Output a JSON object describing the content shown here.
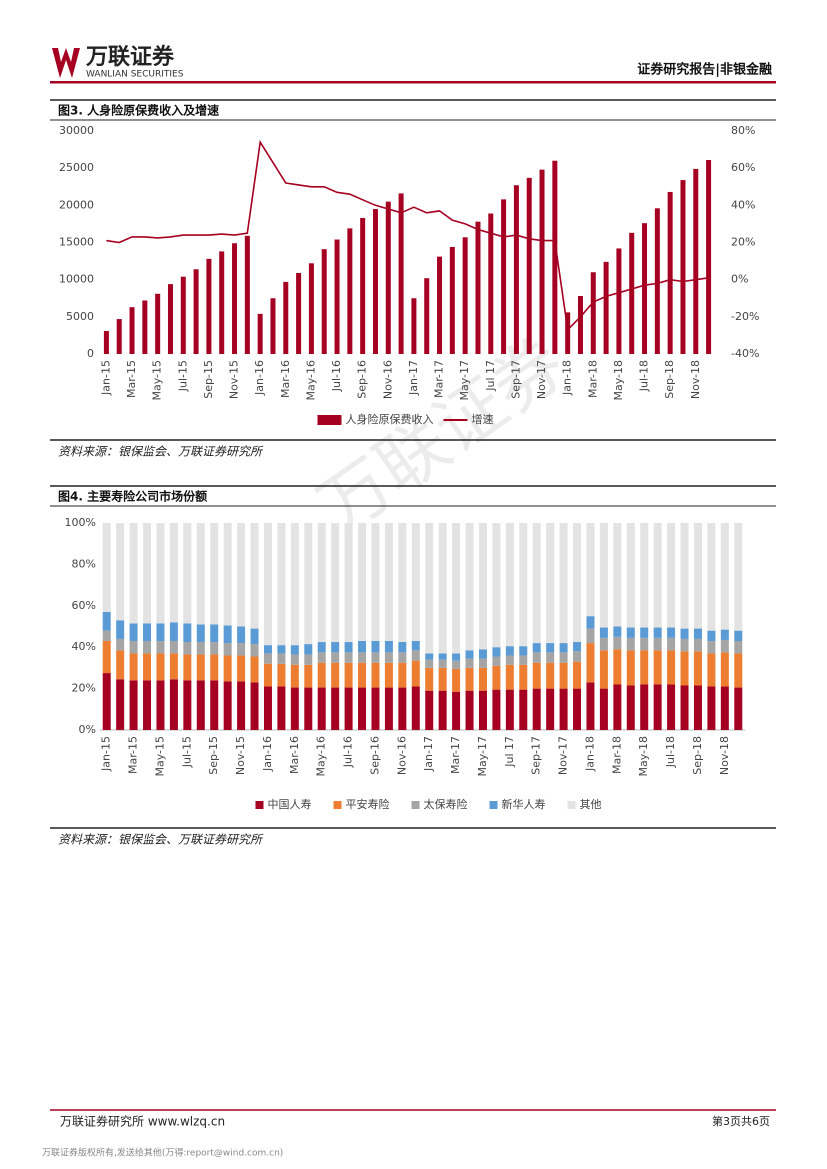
{
  "header": {
    "logo": "万联证券",
    "logo_en": "WANLIAN SECURITIES",
    "report_type": "证券研究报告|非银金融"
  },
  "watermark": "万联证券",
  "chart_data": [
    {
      "type": "bar-line",
      "title": "图3. 人身险原保费收入及增速",
      "source": "资料来源：银保监会、万联证券研究所",
      "categories": [
        "Jan-15",
        null,
        "Mar-15",
        null,
        "May-15",
        null,
        "Jul-15",
        null,
        "Sep-15",
        null,
        "Nov-15",
        null,
        "Jan-16",
        null,
        "Mar-16",
        null,
        "May-16",
        null,
        "Jul-16",
        null,
        "Sep-16",
        null,
        "Nov-16",
        null,
        "Jan-17",
        null,
        "Mar-17",
        null,
        "May-17",
        null,
        "Jul 17",
        null,
        "Sep-17",
        null,
        "Nov-17",
        null,
        "Jan-18",
        null,
        "Mar-18",
        null,
        "May-18",
        null,
        "Jul-18",
        null,
        "Sep-18",
        null,
        "Nov-18",
        null
      ],
      "series": [
        {
          "name": "人身险原保费收入",
          "type": "bar",
          "color": "#a50021",
          "values": [
            3100,
            4700,
            6300,
            7200,
            8100,
            9400,
            10400,
            11400,
            12800,
            13800,
            14900,
            15900,
            5400,
            7500,
            9700,
            10900,
            12200,
            14100,
            15400,
            16900,
            18300,
            19500,
            20500,
            21600,
            7500,
            10200,
            13100,
            14400,
            15700,
            17800,
            18900,
            20800,
            22700,
            23700,
            24800,
            26000,
            5600,
            7800,
            11000,
            12400,
            14200,
            16300,
            17600,
            19600,
            21800,
            23400,
            24900,
            26100
          ]
        },
        {
          "name": "增速",
          "type": "line",
          "color": "#a50021",
          "axis": "y2",
          "values": [
            21,
            20,
            23,
            23,
            22.5,
            23,
            24,
            24,
            24,
            24.5,
            24,
            25,
            74,
            63,
            52,
            51,
            50,
            50,
            47,
            46,
            43,
            40,
            38,
            36,
            39,
            36,
            37,
            32,
            30,
            27,
            25,
            23,
            24,
            22,
            21,
            21,
            -27,
            -20,
            -12,
            -9,
            -7,
            -5,
            -3,
            -2,
            0,
            -1,
            0,
            1
          ]
        }
      ],
      "ylim": [
        0,
        30000
      ],
      "yticks": [
        0,
        5000,
        10000,
        15000,
        20000,
        25000,
        30000
      ],
      "y2lim": [
        -40,
        80
      ],
      "y2ticks": [
        {
          "value": -40,
          "label": "-40%"
        },
        {
          "value": -20,
          "label": "-20%"
        },
        {
          "value": 0,
          "label": "0%"
        },
        {
          "value": 20,
          "label": "20%"
        },
        {
          "value": 40,
          "label": "40%"
        },
        {
          "value": 60,
          "label": "60%"
        },
        {
          "value": 80,
          "label": "80%"
        }
      ],
      "legend": "bottom"
    },
    {
      "type": "stacked-bar",
      "title": "图4. 主要寿险公司市场份额",
      "source": "资料来源：银保监会、万联证券研究所",
      "categories": [
        "Jan-15",
        null,
        "Mar-15",
        null,
        "May-15",
        null,
        "Jul-15",
        null,
        "Sep-15",
        null,
        "Nov-15",
        null,
        "Jan-16",
        null,
        "Mar-16",
        null,
        "May-16",
        null,
        "Jul-16",
        null,
        "Sep-16",
        null,
        "Nov-16",
        null,
        "Jan-17",
        null,
        "Mar-17",
        null,
        "May-17",
        null,
        "Jul 17",
        null,
        "Sep-17",
        null,
        "Nov-17",
        null,
        "Jan-18",
        null,
        "Mar-18",
        null,
        "May-18",
        null,
        "Jul-18",
        null,
        "Sep-18",
        null,
        "Nov-18",
        null
      ],
      "series": [
        {
          "name": "中国人寿",
          "color": "#a50021",
          "values": [
            27.5,
            24.5,
            24,
            24,
            24,
            24.5,
            24,
            24,
            24,
            23.5,
            23.5,
            23,
            21,
            21,
            20.5,
            20.5,
            20.5,
            20.5,
            20.5,
            20.5,
            20.5,
            20.5,
            20.5,
            21,
            19,
            19,
            18.5,
            19,
            19,
            19.5,
            19.5,
            19.5,
            20,
            20,
            20,
            20,
            23,
            20,
            22,
            21.5,
            22,
            22,
            22,
            21.5,
            21.5,
            21,
            21,
            20.5
          ]
        },
        {
          "name": "平安寿险",
          "color": "#ed7d31",
          "values": [
            15.5,
            14,
            13,
            13,
            13,
            12.5,
            12.5,
            12.5,
            12.5,
            12.5,
            12.5,
            12.5,
            11,
            11,
            11,
            11,
            12,
            12,
            12,
            12,
            12,
            12,
            12,
            12.5,
            11,
            11,
            11,
            11,
            11,
            11.5,
            12,
            12,
            12.5,
            12.5,
            12.5,
            13,
            19,
            18.5,
            17,
            17,
            16.5,
            16.5,
            16.5,
            16.5,
            16.5,
            16,
            16.5,
            16.5
          ]
        },
        {
          "name": "太保寿险",
          "color": "#a5a5a5",
          "values": [
            5,
            5.5,
            6,
            6,
            6,
            6,
            6,
            6,
            6,
            6,
            6,
            6,
            5,
            5,
            5,
            5,
            5,
            5,
            5,
            5,
            5,
            5,
            5,
            5,
            4,
            4,
            4,
            4.5,
            4.5,
            4.5,
            4.5,
            4.5,
            5,
            5,
            5,
            5,
            7,
            6,
            6,
            6,
            6,
            6,
            6,
            6,
            6,
            6,
            6,
            6
          ]
        },
        {
          "name": "新华人寿",
          "color": "#5b9bd5",
          "values": [
            9,
            9,
            8.5,
            8.5,
            8.5,
            9,
            9,
            8.5,
            8.5,
            8.5,
            8,
            7.5,
            4,
            4,
            4.5,
            5,
            5,
            5,
            5,
            5.5,
            5.5,
            5.5,
            5,
            4.5,
            3,
            3,
            3.5,
            4,
            4.5,
            4.5,
            4.5,
            4.5,
            4.5,
            4.5,
            4.5,
            4.5,
            6,
            5,
            5,
            5,
            5,
            5,
            5,
            5,
            5,
            5,
            5,
            5
          ]
        },
        {
          "name": "其他",
          "color": "#e3e3e3",
          "values": [
            43,
            47,
            48.5,
            48.5,
            48.5,
            48,
            48.5,
            49,
            49,
            49.5,
            50,
            51,
            59,
            59,
            59,
            58.5,
            57.5,
            57.5,
            57.5,
            57,
            57,
            57,
            57.5,
            57,
            63,
            63,
            63,
            61.5,
            61,
            60,
            59.5,
            59.5,
            58,
            58,
            58,
            57.5,
            45,
            50.5,
            50,
            50.5,
            50.5,
            50.5,
            50.5,
            51,
            51,
            52,
            51.5,
            52
          ]
        }
      ],
      "ylim": [
        0,
        100
      ],
      "yticks": [
        {
          "value": 0,
          "label": "0%"
        },
        {
          "value": 20,
          "label": "20%"
        },
        {
          "value": 40,
          "label": "40%"
        },
        {
          "value": 60,
          "label": "60%"
        },
        {
          "value": 80,
          "label": "80%"
        },
        {
          "value": 100,
          "label": "100%"
        }
      ],
      "legend": "bottom"
    }
  ],
  "footer": {
    "left": "万联证券研究所 www.wlzq.cn",
    "page": "第3页共6页",
    "copyright": "万联证券版权所有,发送给其他(万得:report@wind.com.cn)"
  }
}
